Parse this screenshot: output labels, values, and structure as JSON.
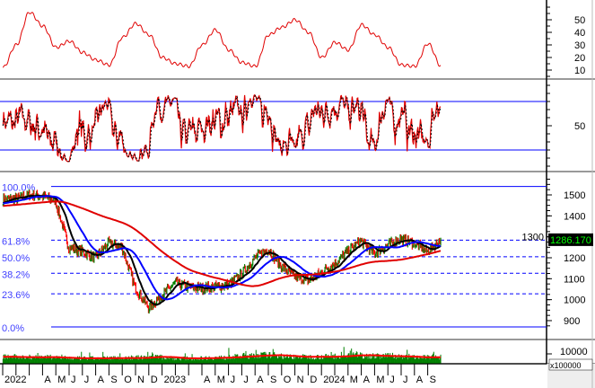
{
  "chart_data": [
    {
      "type": "line",
      "panel": "oscillator-top",
      "y_ticks": [
        "10",
        "20",
        "30",
        "40",
        "50"
      ],
      "ylim": [
        5,
        60
      ],
      "color": "#e00000",
      "x": [
        "2022-01",
        "2022-02",
        "2022-03",
        "2022-04",
        "2022-05",
        "2022-06",
        "2022-07",
        "2022-08",
        "2022-09",
        "2022-10",
        "2022-11",
        "2022-12",
        "2023-01",
        "2023-02",
        "2023-03",
        "2023-04",
        "2023-05",
        "2023-06",
        "2023-07",
        "2023-08",
        "2023-09",
        "2023-10",
        "2023-11",
        "2023-12",
        "2024-01",
        "2024-02",
        "2024-03",
        "2024-04",
        "2024-05",
        "2024-06",
        "2024-07",
        "2024-08",
        "2024-09"
      ],
      "values": [
        12,
        30,
        56,
        45,
        28,
        33,
        24,
        18,
        14,
        36,
        47,
        38,
        20,
        15,
        13,
        30,
        42,
        26,
        16,
        13,
        38,
        44,
        50,
        40,
        20,
        32,
        26,
        46,
        38,
        28,
        14,
        13,
        31
      ]
    },
    {
      "type": "line",
      "panel": "stochastic",
      "y_ticks": [
        "50"
      ],
      "ylim": [
        0,
        100
      ],
      "levels": [
        80,
        20
      ],
      "colors": {
        "k": "#e00000",
        "d": "#000000",
        "levels": "#0000ff"
      }
    },
    {
      "type": "candlestick",
      "panel": "price",
      "x": [
        "2022-01",
        "2022-02",
        "2022-03",
        "2022-04",
        "2022-05",
        "2022-06",
        "2022-07",
        "2022-08",
        "2022-09",
        "2022-10",
        "2022-11",
        "2022-12",
        "2023-01",
        "2023-02",
        "2023-03",
        "2023-04",
        "2023-05",
        "2023-06",
        "2023-07",
        "2023-08",
        "2023-09",
        "2023-10",
        "2023-11",
        "2023-12",
        "2024-01",
        "2024-02",
        "2024-03",
        "2024-04",
        "2024-05",
        "2024-06",
        "2024-07",
        "2024-08",
        "2024-09"
      ],
      "close": [
        1480,
        1500,
        1495,
        1470,
        1250,
        1230,
        1200,
        1270,
        1250,
        1060,
        960,
        1020,
        1080,
        1060,
        1055,
        1060,
        1070,
        1120,
        1200,
        1240,
        1160,
        1110,
        1090,
        1130,
        1170,
        1230,
        1280,
        1220,
        1260,
        1290,
        1270,
        1230,
        1286.17
      ],
      "last_price": "1286.170",
      "y_ticks": [
        "900",
        "1000",
        "1100",
        "1200",
        "1300",
        "1400",
        "1500"
      ],
      "ylim": [
        860,
        1580
      ],
      "fibonacci": {
        "high": 1540,
        "low": 870,
        "levels": [
          {
            "label": "100.0%",
            "ratio": 1.0
          },
          {
            "label": "61.8%",
            "ratio": 0.618
          },
          {
            "label": "50.0%",
            "ratio": 0.5
          },
          {
            "label": "38.2%",
            "ratio": 0.382
          },
          {
            "label": "23.6%",
            "ratio": 0.236
          },
          {
            "label": "0.0%",
            "ratio": 0.0
          }
        ]
      },
      "moving_averages": [
        {
          "period": 20,
          "color": "#000000"
        },
        {
          "period": 50,
          "color": "#0000ff"
        },
        {
          "period": 200,
          "color": "#e00000"
        }
      ],
      "colors": {
        "up": "#008000",
        "down": "#ff0000",
        "label_bg": "#000000",
        "label_fg": "#00ff00"
      }
    },
    {
      "type": "bar",
      "panel": "volume",
      "y_ticks": [
        "10000"
      ],
      "unit_label": "x100000",
      "colors": {
        "bars": "#008000",
        "ma": "#ff0000"
      },
      "monthly_avg": [
        7000,
        6500,
        6800,
        6600,
        5800,
        5500,
        5500,
        5600,
        5900,
        5700,
        6200,
        7600,
        5800,
        5400,
        5500,
        6000,
        6200,
        7200,
        7800,
        8800,
        8600,
        7200,
        7000,
        7000,
        7200,
        7800,
        9100,
        8200,
        7600,
        7800,
        6800,
        6500,
        6600
      ]
    }
  ],
  "x_axis": {
    "labels": [
      "2022",
      "",
      "A",
      "M",
      "J",
      "J",
      "A",
      "S",
      "O",
      "N",
      "D",
      "2023",
      "",
      "A",
      "M",
      "J",
      "J",
      "A",
      "S",
      "O",
      "N",
      "D",
      "2024",
      "M",
      "A",
      "M",
      "J",
      "J",
      "A",
      "S"
    ]
  }
}
